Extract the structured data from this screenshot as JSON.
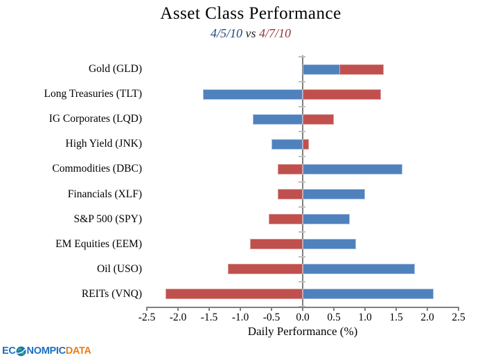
{
  "title": "Asset Class Performance",
  "subtitle": {
    "date_a": "4/5/10",
    "vs": " vs ",
    "date_b": "4/7/10"
  },
  "colors": {
    "series_a": "#4F81BD",
    "series_a_border": "#A3BEDF",
    "series_b": "#C0504D",
    "series_b_border": "#D99795",
    "date_a_text": "#1F497D",
    "date_b_text": "#943634",
    "axis": "#7F7F7F",
    "category_tick": "#BFBFBF"
  },
  "chart_data": {
    "type": "bar",
    "orientation": "horizontal",
    "title": "Asset Class Performance",
    "subtitle": "4/5/10 vs 4/7/10",
    "categories": [
      "Gold (GLD)",
      "Long Treasuries (TLT)",
      "IG Corporates (LQD)",
      "High Yield (JNK)",
      "Commodities (DBC)",
      "Financials (XLF)",
      "S&P 500 (SPY)",
      "EM Equities (EEM)",
      "Oil (USO)",
      "REITs (VNQ)"
    ],
    "series": [
      {
        "name": "4/5/10",
        "color_key": "series_a",
        "values": [
          0.6,
          -1.6,
          -0.8,
          -0.5,
          1.6,
          1.0,
          0.75,
          0.85,
          1.8,
          2.1
        ]
      },
      {
        "name": "4/7/10",
        "color_key": "series_b",
        "values": [
          1.3,
          1.25,
          0.5,
          0.1,
          -0.4,
          -0.4,
          -0.55,
          -0.85,
          -1.2,
          -2.2
        ]
      }
    ],
    "xlabel": "Daily Performance (%)",
    "xlim": [
      -2.5,
      2.5
    ],
    "xticks": [
      -2.5,
      -2.0,
      -1.5,
      -1.0,
      -0.5,
      0.0,
      0.5,
      1.0,
      1.5,
      2.0,
      2.5
    ],
    "xtick_labels": [
      "-2.5",
      "-2.0",
      "-1.5",
      "-1.0",
      "-0.5",
      "0.0",
      "0.5",
      "1.0",
      "1.5",
      "2.0",
      "2.5"
    ],
    "grid": false,
    "legend_position": "none"
  },
  "logo": {
    "part1": "EC",
    "part2": "NOMPIC",
    "part3": "DATA"
  }
}
